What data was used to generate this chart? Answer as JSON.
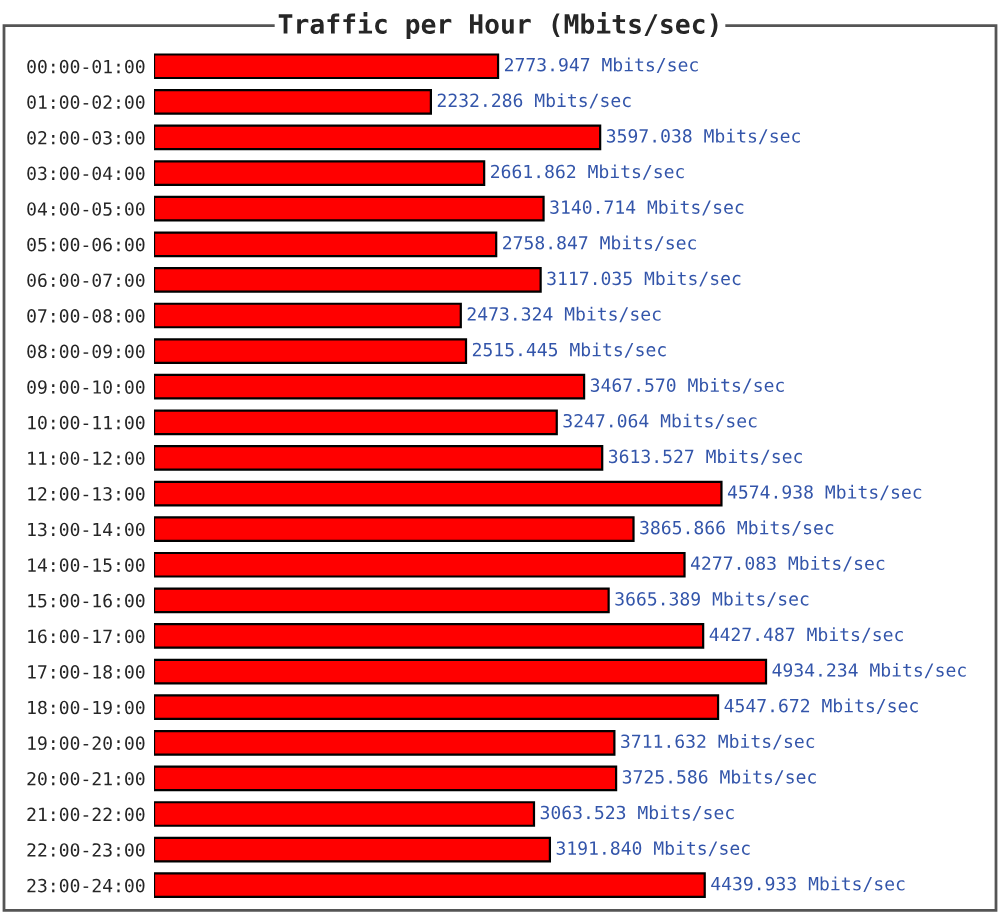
{
  "chart_data": {
    "type": "bar",
    "orientation": "horizontal",
    "title": "Traffic per Hour (Mbits/sec)",
    "categories": [
      "00:00-01:00",
      "01:00-02:00",
      "02:00-03:00",
      "03:00-04:00",
      "04:00-05:00",
      "05:00-06:00",
      "06:00-07:00",
      "07:00-08:00",
      "08:00-09:00",
      "09:00-10:00",
      "10:00-11:00",
      "11:00-12:00",
      "12:00-13:00",
      "13:00-14:00",
      "14:00-15:00",
      "15:00-16:00",
      "16:00-17:00",
      "17:00-18:00",
      "18:00-19:00",
      "19:00-20:00",
      "20:00-21:00",
      "21:00-22:00",
      "22:00-23:00",
      "23:00-24:00"
    ],
    "values": [
      2773.947,
      2232.286,
      3597.038,
      2661.862,
      3140.714,
      2758.847,
      3117.035,
      2473.324,
      2515.445,
      3467.57,
      3247.064,
      3613.527,
      4574.938,
      3865.866,
      4277.083,
      3665.389,
      4427.487,
      4934.234,
      4547.672,
      3711.632,
      3725.586,
      3063.523,
      3191.84,
      4439.933
    ],
    "value_labels": [
      "2773.947 Mbits/sec",
      "2232.286 Mbits/sec",
      "3597.038 Mbits/sec",
      "2661.862 Mbits/sec",
      "3140.714 Mbits/sec",
      "2758.847 Mbits/sec",
      "3117.035 Mbits/sec",
      "2473.324 Mbits/sec",
      "2515.445 Mbits/sec",
      "3467.570 Mbits/sec",
      "3247.064 Mbits/sec",
      "3613.527 Mbits/sec",
      "4574.938 Mbits/sec",
      "3865.866 Mbits/sec",
      "4277.083 Mbits/sec",
      "3665.389 Mbits/sec",
      "4427.487 Mbits/sec",
      "4934.234 Mbits/sec",
      "4547.672 Mbits/sec",
      "3711.632 Mbits/sec",
      "3725.586 Mbits/sec",
      "3063.523 Mbits/sec",
      "3191.840 Mbits/sec",
      "4439.933 Mbits/sec"
    ],
    "color": "#ff0000",
    "xlim": [
      0,
      6740
    ],
    "tick_labels": "y",
    "grid": false,
    "legend": false
  }
}
